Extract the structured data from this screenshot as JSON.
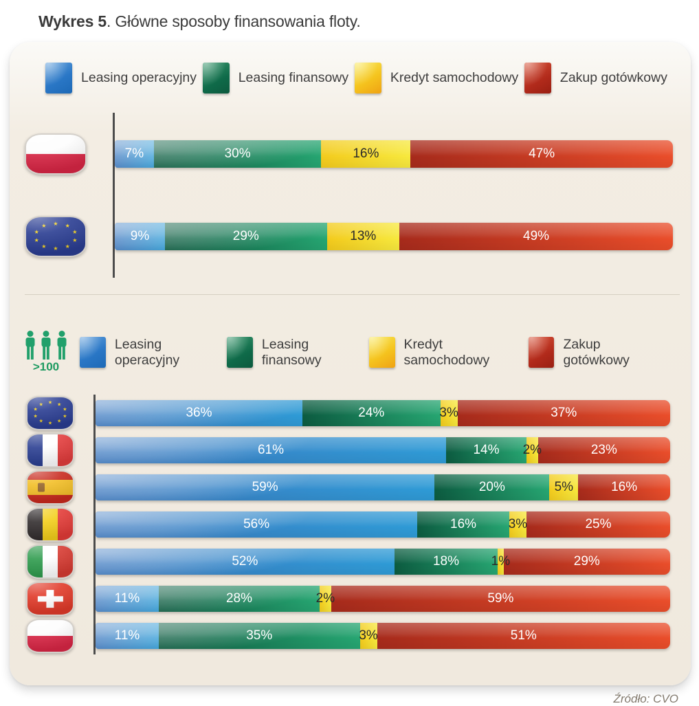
{
  "title": {
    "bold": "Wykres 5",
    "rest": ". Główne sposoby finansowania floty."
  },
  "legend": {
    "items": [
      {
        "name": "leasing-operacyjny",
        "label": "Leasing operacyjny",
        "color": "#2e7fc6"
      },
      {
        "name": "leasing-finansowy",
        "label": "Leasing finansowy",
        "color": "#116a4a"
      },
      {
        "name": "kredyt-samochodowy",
        "label": "Kredyt samochodowy",
        "color": "#f5d41f"
      },
      {
        "name": "zakup-gotowkowy",
        "label": "Zakup gotówkowy",
        "color": "#c0321f"
      }
    ]
  },
  "fleet_badge": {
    "icon": "people-icon",
    "label": ">100"
  },
  "source": "Źródło: CVO",
  "chart_data": {
    "type": "bar",
    "stacked": true,
    "orientation": "horizontal",
    "unit": "%",
    "series": [
      "Leasing operacyjny",
      "Leasing finansowy",
      "Kredyt samochodowy",
      "Zakup gotówkowy"
    ],
    "series_colors": [
      "#2e7fc6",
      "#116a4a",
      "#f5d41f",
      "#c0321f"
    ],
    "label_format": "{value}%",
    "xlim": [
      0,
      100
    ],
    "charts": [
      {
        "id": "all-fleets",
        "rows": [
          {
            "flag": "poland",
            "values": [
              7,
              30,
              16,
              47
            ]
          },
          {
            "flag": "eu",
            "values": [
              9,
              29,
              13,
              49
            ]
          }
        ]
      },
      {
        "id": "fleets-over-100",
        "group_label": ">100",
        "rows": [
          {
            "flag": "eu",
            "values": [
              36,
              24,
              3,
              37
            ]
          },
          {
            "flag": "france",
            "values": [
              61,
              14,
              2,
              23
            ]
          },
          {
            "flag": "spain",
            "values": [
              59,
              20,
              5,
              16
            ]
          },
          {
            "flag": "belgium",
            "values": [
              56,
              16,
              3,
              25
            ]
          },
          {
            "flag": "italy",
            "values": [
              52,
              18,
              1,
              29
            ]
          },
          {
            "flag": "switzerland",
            "values": [
              11,
              28,
              2,
              59
            ]
          },
          {
            "flag": "poland",
            "values": [
              11,
              35,
              3,
              51
            ]
          }
        ]
      }
    ]
  }
}
